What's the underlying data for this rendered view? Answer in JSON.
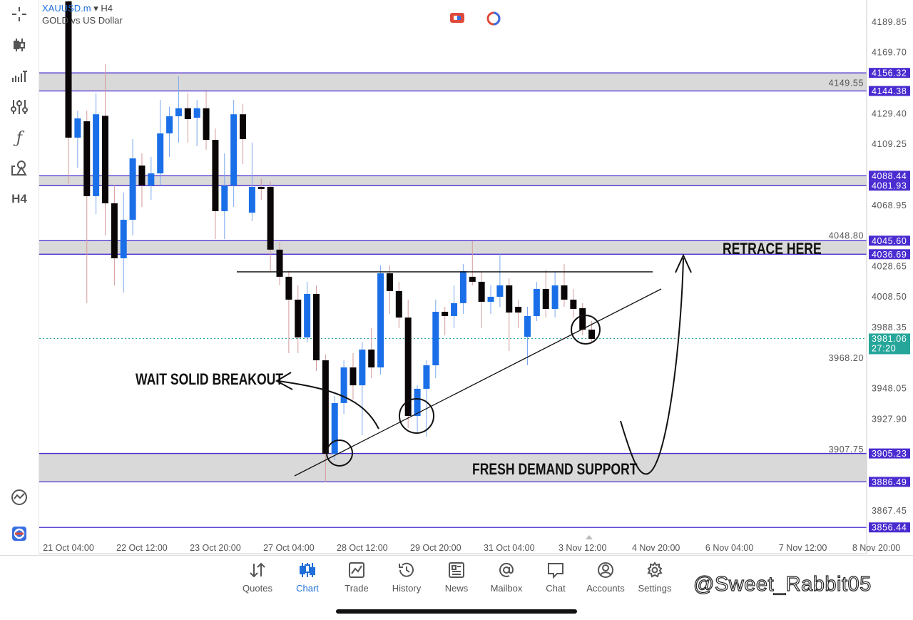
{
  "header": {
    "symbol": "XAUUSD.m",
    "timeframe": "H4",
    "description": "GOLD vs US Dollar"
  },
  "toolbar": {
    "items": [
      {
        "icon": "crosshair-icon"
      },
      {
        "icon": "candlestick-type-icon"
      },
      {
        "icon": "indicators-icon"
      },
      {
        "icon": "settings-sliders-icon"
      },
      {
        "icon": "function-icon"
      },
      {
        "icon": "objects-icon"
      },
      {
        "label": "H4"
      }
    ],
    "bottom_icons": [
      "chart-analysis-icon",
      "app-logo-icon"
    ]
  },
  "colors": {
    "bull": "#1a6fe8",
    "bear": "#0a0506",
    "zone_fill": "#d9d9d9",
    "zone_line": "#4a2bd0",
    "label_bg": "#4a2bd0",
    "current_bg": "#26a69a",
    "accent": "#1e6fd9"
  },
  "chart_data": {
    "type": "candlestick",
    "ylim": [
      3848,
      4204
    ],
    "y_ticks": [
      "4189.85",
      "4169.70",
      "4149.55",
      "4129.40",
      "4109.25",
      "4068.95",
      "4048.80",
      "4028.65",
      "4008.50",
      "3988.35",
      "3968.20",
      "3948.05",
      "3927.90",
      "3907.75",
      "3867.45"
    ],
    "x_ticks": [
      "21 Oct 04:00",
      "22 Oct 12:00",
      "23 Oct 20:00",
      "27 Oct 04:00",
      "28 Oct 12:00",
      "29 Oct 20:00",
      "31 Oct 04:00",
      "3 Nov 12:00",
      "4 Nov 20:00",
      "6 Nov 04:00",
      "7 Nov 12:00",
      "8 Nov 20:00"
    ],
    "candles_per_tick": 8,
    "ohlc": [
      [
        4203.5,
        4204,
        4083,
        4113.6
      ],
      [
        4113.6,
        4131.4,
        4093.8,
        4126.3
      ],
      [
        4124.4,
        4131.4,
        4004.4,
        4075
      ],
      [
        4075,
        4143,
        4063.2,
        4129
      ],
      [
        4128,
        4162,
        4049.1,
        4070.3
      ],
      [
        4070.3,
        4082,
        4016.1,
        4034
      ],
      [
        4034,
        4077.3,
        4011.4,
        4059.4
      ],
      [
        4059.4,
        4112.6,
        4049.1,
        4099.9
      ],
      [
        4095.2,
        4103.2,
        4067.9,
        4082
      ],
      [
        4082,
        4100.8,
        4072.6,
        4090
      ],
      [
        4090,
        4138.5,
        4082,
        4116.4
      ],
      [
        4116.4,
        4134,
        4100.8,
        4127.7
      ],
      [
        4127.7,
        4154,
        4110.3,
        4133
      ],
      [
        4133,
        4143,
        4110.3,
        4125.8
      ],
      [
        4126.7,
        4138.5,
        4107.9,
        4133
      ],
      [
        4133,
        4144,
        4105.6,
        4112.1
      ],
      [
        4112.1,
        4119.7,
        4046.7,
        4065.1
      ],
      [
        4065.1,
        4103.2,
        4046.7,
        4082
      ],
      [
        4082,
        4138.5,
        4067.9,
        4129
      ],
      [
        4129,
        4136,
        4096.1,
        4112.6
      ],
      [
        4064.1,
        4110.3,
        4058.5,
        4081.1
      ],
      [
        4081.1,
        4086.7,
        4072.6,
        4079.7
      ],
      [
        4081.1,
        4084.4,
        4025.5,
        4039.7
      ],
      [
        4039.7,
        4044.4,
        4016.1,
        4021.8
      ],
      [
        4021.8,
        4025.5,
        3971.4,
        4006.7
      ],
      [
        4006.7,
        4016.1,
        3971.4,
        3981.8
      ],
      [
        3981.8,
        4018.5,
        3978.5,
        4010.5
      ],
      [
        4010.5,
        4016.1,
        3959.6,
        3966.7
      ],
      [
        3966.7,
        3970.5,
        3886.2,
        3905
      ],
      [
        3905,
        3943.2,
        3900.8,
        3938.5
      ],
      [
        3938.5,
        3966.7,
        3931.4,
        3962
      ],
      [
        3962,
        3971.4,
        3940.8,
        3950.2
      ],
      [
        3950.2,
        3978.5,
        3917.3,
        3973.8
      ],
      [
        3973.8,
        3987.9,
        3954.9,
        3962
      ],
      [
        3962,
        4029.3,
        3957.3,
        4024.1
      ],
      [
        4024.1,
        4029.3,
        3997.3,
        4012.4
      ],
      [
        4012.4,
        4018.5,
        3987.9,
        3994.9
      ],
      [
        3994.9,
        4006.7,
        3922,
        3930
      ],
      [
        3930,
        3950.2,
        3919.6,
        3947.9
      ],
      [
        3947.9,
        3966.7,
        3916.3,
        3963.4
      ],
      [
        3963.4,
        4006.7,
        3954.9,
        3998.7
      ],
      [
        3998.7,
        4002,
        3983.2,
        3995.9
      ],
      [
        3995.9,
        4016.1,
        3987.9,
        4004.4
      ],
      [
        4004.4,
        4030.2,
        3997.3,
        4025.5
      ],
      [
        4021.8,
        4045.3,
        4016.1,
        4018.5
      ],
      [
        4018.5,
        4025.5,
        3987.9,
        4005.3
      ],
      [
        4005.3,
        4016.1,
        3997.3,
        4008.6
      ],
      [
        4008.6,
        4036.8,
        4002,
        4016.1
      ],
      [
        4016.1,
        4020.8,
        3972.8,
        3998.2
      ],
      [
        4002,
        4006.7,
        3987.9,
        3998.2
      ],
      [
        3982.2,
        4002,
        3963.4,
        3995.9
      ],
      [
        3995.9,
        4018.5,
        3992.6,
        4013.8
      ],
      [
        4013.8,
        4026.5,
        3994.9,
        4000.6
      ],
      [
        4000.6,
        4025.5,
        3994.9,
        4016.1
      ],
      [
        4016.1,
        4030.2,
        4002,
        4006.7
      ],
      [
        4006.7,
        4013.8,
        3994.9,
        4000.6
      ],
      [
        4001.1,
        4004.4,
        3983.2,
        3986.9
      ],
      [
        3986.9,
        3992.6,
        3978.5,
        3980.8
      ]
    ],
    "zones": [
      {
        "top": "4156.32",
        "bottom": "4144.38"
      },
      {
        "top": "4088.44",
        "bottom": "4081.93"
      },
      {
        "top": "4045.60",
        "bottom": "4036.69"
      },
      {
        "top": "3905.23",
        "bottom": "3886.49"
      }
    ],
    "levels": [
      "3856.44"
    ],
    "current_price": "3981.06",
    "countdown": "27:20"
  },
  "annotations": {
    "retrace": "RETRACE HERE",
    "demand": "FRESH DEMAND SUPPORT",
    "breakout": "WAIT SOLID BREAKOUT"
  },
  "nav": {
    "items": [
      {
        "label": "Quotes",
        "icon": "quotes-icon"
      },
      {
        "label": "Chart",
        "icon": "chart-icon",
        "active": true
      },
      {
        "label": "Trade",
        "icon": "trade-icon"
      },
      {
        "label": "History",
        "icon": "history-icon"
      },
      {
        "label": "News",
        "icon": "news-icon"
      },
      {
        "label": "Mailbox",
        "icon": "mailbox-icon"
      },
      {
        "label": "Chat",
        "icon": "chat-icon"
      },
      {
        "label": "Accounts",
        "icon": "accounts-icon"
      },
      {
        "label": "Settings",
        "icon": "settings-icon"
      }
    ]
  },
  "watermark": "@Sweet_Rabbit05"
}
